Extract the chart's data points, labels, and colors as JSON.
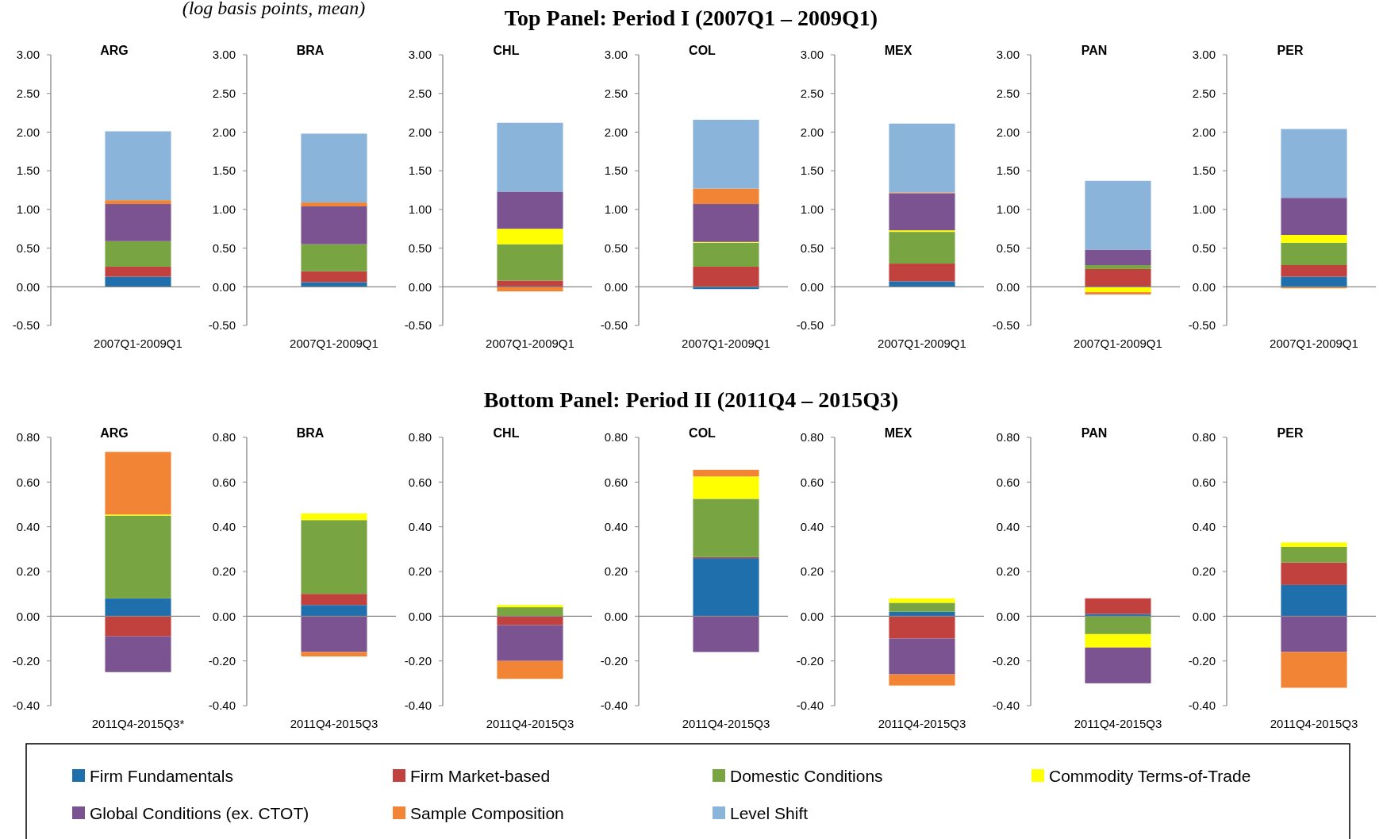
{
  "chart_data": [
    {
      "type": "bar",
      "stacked": true,
      "title": "ARG",
      "subtitle": "(log basis points, mean)",
      "annotations": [
        "Top Panel: Period I (2007Q1 – 2009Q1)"
      ],
      "categories": [
        "2007Q1-2009Q1"
      ],
      "ylim": [
        -0.5,
        3
      ],
      "yticks": [
        {
          "value": -0.5,
          "label": "-0.50"
        },
        {
          "value": 0,
          "label": "0.00"
        },
        {
          "value": 0.5,
          "label": "0.50"
        },
        {
          "value": 1,
          "label": "1.00"
        },
        {
          "value": 1.5,
          "label": "1.50"
        },
        {
          "value": 2,
          "label": "2.00"
        },
        {
          "value": 2.5,
          "label": "2.50"
        },
        {
          "value": 3,
          "label": "3.00"
        }
      ],
      "series": [
        {
          "color": "#1f6fad",
          "values": [
            0.13
          ]
        },
        {
          "color": "#c0413d",
          "values": [
            0.13
          ]
        },
        {
          "color": "#79a442",
          "values": [
            0.33
          ]
        },
        {
          "color": "#7a5390",
          "values": [
            0.48
          ]
        },
        {
          "color": "#f28535",
          "values": [
            0.05
          ]
        },
        {
          "color": "#8ab4da",
          "values": [
            0.89
          ]
        }
      ]
    },
    {
      "type": "bar",
      "stacked": true,
      "title": "BRA",
      "categories": [
        "2007Q1-2009Q1"
      ],
      "ylim": [
        -0.5,
        3
      ],
      "yticks": [
        {
          "value": -0.5,
          "label": "-0.50"
        },
        {
          "value": 0,
          "label": "0.00"
        },
        {
          "value": 0.5,
          "label": "0.50"
        },
        {
          "value": 1,
          "label": "1.00"
        },
        {
          "value": 1.5,
          "label": "1.50"
        },
        {
          "value": 2,
          "label": "2.00"
        },
        {
          "value": 2.5,
          "label": "2.50"
        },
        {
          "value": 3,
          "label": "3.00"
        }
      ],
      "series": [
        {
          "color": "#1f6fad",
          "values": [
            0.06
          ]
        },
        {
          "color": "#c0413d",
          "values": [
            0.14
          ]
        },
        {
          "color": "#79a442",
          "values": [
            0.35
          ]
        },
        {
          "color": "#7a5390",
          "values": [
            0.49
          ]
        },
        {
          "color": "#f28535",
          "values": [
            0.05
          ]
        },
        {
          "color": "#8ab4da",
          "values": [
            0.89
          ]
        }
      ]
    },
    {
      "type": "bar",
      "stacked": true,
      "title": "CHL",
      "categories": [
        "2007Q1-2009Q1"
      ],
      "ylim": [
        -0.5,
        3
      ],
      "yticks": [
        {
          "value": -0.5,
          "label": "-0.50"
        },
        {
          "value": 0,
          "label": "0.00"
        },
        {
          "value": 0.5,
          "label": "0.50"
        },
        {
          "value": 1,
          "label": "1.00"
        },
        {
          "value": 1.5,
          "label": "1.50"
        },
        {
          "value": 2,
          "label": "2.00"
        },
        {
          "value": 2.5,
          "label": "2.50"
        },
        {
          "value": 3,
          "label": "3.00"
        }
      ],
      "series": [
        {
          "color": "#c0413d",
          "values": [
            0.08
          ]
        },
        {
          "color": "#79a442",
          "values": [
            0.47
          ]
        },
        {
          "color": "#ffff00",
          "values": [
            0.2
          ]
        },
        {
          "color": "#7a5390",
          "values": [
            0.48
          ]
        },
        {
          "color": "#f28535",
          "values": [
            -0.06
          ]
        },
        {
          "color": "#8ab4da",
          "values": [
            0.89
          ]
        }
      ]
    },
    {
      "type": "bar",
      "stacked": true,
      "title": "COL",
      "categories": [
        "2007Q1-2009Q1"
      ],
      "ylim": [
        -0.5,
        3
      ],
      "yticks": [
        {
          "value": -0.5,
          "label": "-0.50"
        },
        {
          "value": 0,
          "label": "0.00"
        },
        {
          "value": 0.5,
          "label": "0.50"
        },
        {
          "value": 1,
          "label": "1.00"
        },
        {
          "value": 1.5,
          "label": "1.50"
        },
        {
          "value": 2,
          "label": "2.00"
        },
        {
          "value": 2.5,
          "label": "2.50"
        },
        {
          "value": 3,
          "label": "3.00"
        }
      ],
      "series": [
        {
          "color": "#1f6fad",
          "values": [
            -0.03
          ]
        },
        {
          "color": "#c0413d",
          "values": [
            0.26
          ]
        },
        {
          "color": "#79a442",
          "values": [
            0.31
          ]
        },
        {
          "color": "#ffff00",
          "values": [
            0.01
          ]
        },
        {
          "color": "#7a5390",
          "values": [
            0.49
          ]
        },
        {
          "color": "#f28535",
          "values": [
            0.2
          ]
        },
        {
          "color": "#8ab4da",
          "values": [
            0.89
          ]
        }
      ]
    },
    {
      "type": "bar",
      "stacked": true,
      "title": "MEX",
      "categories": [
        "2007Q1-2009Q1"
      ],
      "ylim": [
        -0.5,
        3
      ],
      "yticks": [
        {
          "value": -0.5,
          "label": "-0.50"
        },
        {
          "value": 0,
          "label": "0.00"
        },
        {
          "value": 0.5,
          "label": "0.50"
        },
        {
          "value": 1,
          "label": "1.00"
        },
        {
          "value": 1.5,
          "label": "1.50"
        },
        {
          "value": 2,
          "label": "2.00"
        },
        {
          "value": 2.5,
          "label": "2.50"
        },
        {
          "value": 3,
          "label": "3.00"
        }
      ],
      "series": [
        {
          "color": "#1f6fad",
          "values": [
            0.07
          ]
        },
        {
          "color": "#c0413d",
          "values": [
            0.23
          ]
        },
        {
          "color": "#79a442",
          "values": [
            0.41
          ]
        },
        {
          "color": "#ffff00",
          "values": [
            0.02
          ]
        },
        {
          "color": "#7a5390",
          "values": [
            0.48
          ]
        },
        {
          "color": "#f28535",
          "values": [
            0.01
          ]
        },
        {
          "color": "#8ab4da",
          "values": [
            0.89
          ]
        }
      ]
    },
    {
      "type": "bar",
      "stacked": true,
      "title": "PAN",
      "categories": [
        "2007Q1-2009Q1"
      ],
      "ylim": [
        -0.5,
        3
      ],
      "yticks": [
        {
          "value": -0.5,
          "label": "-0.50"
        },
        {
          "value": 0,
          "label": "0.00"
        },
        {
          "value": 0.5,
          "label": "0.50"
        },
        {
          "value": 1,
          "label": "1.00"
        },
        {
          "value": 1.5,
          "label": "1.50"
        },
        {
          "value": 2,
          "label": "2.00"
        },
        {
          "value": 2.5,
          "label": "2.50"
        },
        {
          "value": 3,
          "label": "3.00"
        }
      ],
      "series": [
        {
          "color": "#c0413d",
          "values": [
            0.23
          ]
        },
        {
          "color": "#79a442",
          "values": [
            0.05
          ]
        },
        {
          "color": "#ffff00",
          "values": [
            -0.07
          ]
        },
        {
          "color": "#7a5390",
          "values": [
            0.2
          ]
        },
        {
          "color": "#f28535",
          "values": [
            -0.03
          ]
        },
        {
          "color": "#8ab4da",
          "values": [
            0.89
          ]
        }
      ]
    },
    {
      "type": "bar",
      "stacked": true,
      "title": "PER",
      "categories": [
        "2007Q1-2009Q1"
      ],
      "ylim": [
        -0.5,
        3
      ],
      "yticks": [
        {
          "value": -0.5,
          "label": "-0.50"
        },
        {
          "value": 0,
          "label": "0.00"
        },
        {
          "value": 0.5,
          "label": "0.50"
        },
        {
          "value": 1,
          "label": "1.00"
        },
        {
          "value": 1.5,
          "label": "1.50"
        },
        {
          "value": 2,
          "label": "2.00"
        },
        {
          "value": 2.5,
          "label": "2.50"
        },
        {
          "value": 3,
          "label": "3.00"
        }
      ],
      "series": [
        {
          "color": "#1f6fad",
          "values": [
            0.13
          ]
        },
        {
          "color": "#c0413d",
          "values": [
            0.15
          ]
        },
        {
          "color": "#79a442",
          "values": [
            0.29
          ]
        },
        {
          "color": "#ffff00",
          "values": [
            0.1
          ]
        },
        {
          "color": "#7a5390",
          "values": [
            0.48
          ]
        },
        {
          "color": "#f28535",
          "values": [
            -0.02
          ]
        },
        {
          "color": "#8ab4da",
          "values": [
            0.89
          ]
        }
      ]
    },
    {
      "type": "bar",
      "stacked": true,
      "title": "ARG",
      "annotations": [
        "Bottom Panel: Period II (2011Q4 – 2015Q3)"
      ],
      "categories": [
        "2011Q4-2015Q3*"
      ],
      "ylim": [
        -0.4,
        0.8
      ],
      "yticks": [
        {
          "value": -0.4,
          "label": "-0.40"
        },
        {
          "value": -0.2,
          "label": "-0.20"
        },
        {
          "value": 0,
          "label": "0.00"
        },
        {
          "value": 0.2,
          "label": "0.20"
        },
        {
          "value": 0.4,
          "label": "0.40"
        },
        {
          "value": 0.6,
          "label": "0.60"
        },
        {
          "value": 0.8,
          "label": "0.80"
        }
      ],
      "series": [
        {
          "color": "#1f6fad",
          "values": [
            0.08
          ]
        },
        {
          "color": "#c0413d",
          "values": [
            -0.09
          ]
        },
        {
          "color": "#79a442",
          "values": [
            0.37
          ]
        },
        {
          "color": "#ffff00",
          "values": [
            0.005
          ]
        },
        {
          "color": "#7a5390",
          "values": [
            -0.16
          ]
        },
        {
          "color": "#f28535",
          "values": [
            0.28
          ]
        }
      ]
    },
    {
      "type": "bar",
      "stacked": true,
      "title": "BRA",
      "categories": [
        "2011Q4-2015Q3"
      ],
      "ylim": [
        -0.4,
        0.8
      ],
      "yticks": [
        {
          "value": -0.4,
          "label": "-0.40"
        },
        {
          "value": -0.2,
          "label": "-0.20"
        },
        {
          "value": 0,
          "label": "0.00"
        },
        {
          "value": 0.2,
          "label": "0.20"
        },
        {
          "value": 0.4,
          "label": "0.40"
        },
        {
          "value": 0.6,
          "label": "0.60"
        },
        {
          "value": 0.8,
          "label": "0.80"
        }
      ],
      "series": [
        {
          "color": "#1f6fad",
          "values": [
            0.05
          ]
        },
        {
          "color": "#c0413d",
          "values": [
            0.05
          ]
        },
        {
          "color": "#79a442",
          "values": [
            0.33
          ]
        },
        {
          "color": "#ffff00",
          "values": [
            0.03
          ]
        },
        {
          "color": "#7a5390",
          "values": [
            -0.16
          ]
        },
        {
          "color": "#f28535",
          "values": [
            -0.02
          ]
        }
      ]
    },
    {
      "type": "bar",
      "stacked": true,
      "title": "CHL",
      "categories": [
        "2011Q4-2015Q3"
      ],
      "ylim": [
        -0.4,
        0.8
      ],
      "yticks": [
        {
          "value": -0.4,
          "label": "-0.40"
        },
        {
          "value": -0.2,
          "label": "-0.20"
        },
        {
          "value": 0,
          "label": "0.00"
        },
        {
          "value": 0.2,
          "label": "0.20"
        },
        {
          "value": 0.4,
          "label": "0.40"
        },
        {
          "value": 0.6,
          "label": "0.60"
        },
        {
          "value": 0.8,
          "label": "0.80"
        }
      ],
      "series": [
        {
          "color": "#c0413d",
          "values": [
            -0.04
          ]
        },
        {
          "color": "#79a442",
          "values": [
            0.04
          ]
        },
        {
          "color": "#ffff00",
          "values": [
            0.01
          ]
        },
        {
          "color": "#7a5390",
          "values": [
            -0.16
          ]
        },
        {
          "color": "#f28535",
          "values": [
            -0.08
          ]
        }
      ]
    },
    {
      "type": "bar",
      "stacked": true,
      "title": "COL",
      "categories": [
        "2011Q4-2015Q3"
      ],
      "ylim": [
        -0.4,
        0.8
      ],
      "yticks": [
        {
          "value": -0.4,
          "label": "-0.40"
        },
        {
          "value": -0.2,
          "label": "-0.20"
        },
        {
          "value": 0,
          "label": "0.00"
        },
        {
          "value": 0.2,
          "label": "0.20"
        },
        {
          "value": 0.4,
          "label": "0.40"
        },
        {
          "value": 0.6,
          "label": "0.60"
        },
        {
          "value": 0.8,
          "label": "0.80"
        }
      ],
      "series": [
        {
          "color": "#1f6fad",
          "values": [
            0.26
          ]
        },
        {
          "color": "#c0413d",
          "values": [
            0.005
          ]
        },
        {
          "color": "#79a442",
          "values": [
            0.26
          ]
        },
        {
          "color": "#ffff00",
          "values": [
            0.1
          ]
        },
        {
          "color": "#7a5390",
          "values": [
            -0.16
          ]
        },
        {
          "color": "#f28535",
          "values": [
            0.03
          ]
        }
      ]
    },
    {
      "type": "bar",
      "stacked": true,
      "title": "MEX",
      "categories": [
        "2011Q4-2015Q3"
      ],
      "ylim": [
        -0.4,
        0.8
      ],
      "yticks": [
        {
          "value": -0.4,
          "label": "-0.40"
        },
        {
          "value": -0.2,
          "label": "-0.20"
        },
        {
          "value": 0,
          "label": "0.00"
        },
        {
          "value": 0.2,
          "label": "0.20"
        },
        {
          "value": 0.4,
          "label": "0.40"
        },
        {
          "value": 0.6,
          "label": "0.60"
        },
        {
          "value": 0.8,
          "label": "0.80"
        }
      ],
      "series": [
        {
          "color": "#1f6fad",
          "values": [
            0.02
          ]
        },
        {
          "color": "#c0413d",
          "values": [
            -0.1
          ]
        },
        {
          "color": "#79a442",
          "values": [
            0.04
          ]
        },
        {
          "color": "#ffff00",
          "values": [
            0.02
          ]
        },
        {
          "color": "#7a5390",
          "values": [
            -0.16
          ]
        },
        {
          "color": "#f28535",
          "values": [
            -0.05
          ]
        }
      ]
    },
    {
      "type": "bar",
      "stacked": true,
      "title": "PAN",
      "categories": [
        "2011Q4-2015Q3"
      ],
      "ylim": [
        -0.4,
        0.8
      ],
      "yticks": [
        {
          "value": -0.4,
          "label": "-0.40"
        },
        {
          "value": -0.2,
          "label": "-0.20"
        },
        {
          "value": 0,
          "label": "0.00"
        },
        {
          "value": 0.2,
          "label": "0.20"
        },
        {
          "value": 0.4,
          "label": "0.40"
        },
        {
          "value": 0.6,
          "label": "0.60"
        },
        {
          "value": 0.8,
          "label": "0.80"
        }
      ],
      "series": [
        {
          "color": "#1f6fad",
          "values": [
            0.01
          ]
        },
        {
          "color": "#c0413d",
          "values": [
            0.07
          ]
        },
        {
          "color": "#79a442",
          "values": [
            -0.08
          ]
        },
        {
          "color": "#ffff00",
          "values": [
            -0.06
          ]
        },
        {
          "color": "#7a5390",
          "values": [
            -0.16
          ]
        }
      ]
    },
    {
      "type": "bar",
      "stacked": true,
      "title": "PER",
      "categories": [
        "2011Q4-2015Q3"
      ],
      "ylim": [
        -0.4,
        0.8
      ],
      "yticks": [
        {
          "value": -0.4,
          "label": "-0.40"
        },
        {
          "value": -0.2,
          "label": "-0.20"
        },
        {
          "value": 0,
          "label": "0.00"
        },
        {
          "value": 0.2,
          "label": "0.20"
        },
        {
          "value": 0.4,
          "label": "0.40"
        },
        {
          "value": 0.6,
          "label": "0.60"
        },
        {
          "value": 0.8,
          "label": "0.80"
        }
      ],
      "legend": "bottom",
      "series": [
        {
          "name": "Firm Fundamentals",
          "color": "#1f6fad",
          "values": [
            0.14
          ]
        },
        {
          "name": "Firm Market-based",
          "color": "#c0413d",
          "values": [
            0.1
          ]
        },
        {
          "name": "Domestic Conditions",
          "color": "#79a442",
          "values": [
            0.07
          ]
        },
        {
          "name": "Commodity Terms-of-Trade",
          "color": "#ffff00",
          "values": [
            0.02
          ]
        },
        {
          "name": "Global Conditions (ex. CTOT)",
          "color": "#7a5390",
          "values": [
            -0.16
          ]
        },
        {
          "name": "Sample Composition",
          "color": "#f28535",
          "values": [
            -0.16
          ]
        },
        {
          "name": "Level Shift",
          "color": "#8ab4da",
          "values": [
            null
          ]
        }
      ]
    }
  ]
}
